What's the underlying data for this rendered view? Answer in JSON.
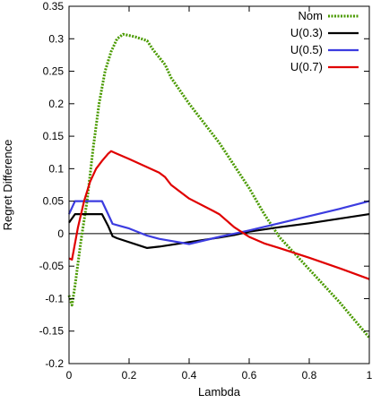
{
  "chart_data": {
    "type": "line",
    "xlabel": "Lambda",
    "ylabel": "Regret Difference",
    "xlim": [
      0,
      1
    ],
    "ylim": [
      -0.2,
      0.35
    ],
    "xticks": [
      0,
      0.2,
      0.4,
      0.6,
      0.8,
      1
    ],
    "xtick_labels": [
      "0",
      "0.2",
      "0.4",
      "0.6",
      "0.8",
      "1"
    ],
    "yticks": [
      -0.2,
      -0.15,
      -0.1,
      -0.05,
      0,
      0.05,
      0.1,
      0.15,
      0.2,
      0.25,
      0.3,
      0.35
    ],
    "ytick_labels": [
      "-0.2",
      "-0.15",
      "-0.1",
      "-0.05",
      "0",
      "0.05",
      "0.1",
      "0.15",
      "0.2",
      "0.25",
      "0.3",
      "0.35"
    ],
    "zero_line": true,
    "grid": false,
    "legend_position": "top-right",
    "series": [
      {
        "name": "Nom",
        "color": "#4a9a00",
        "dashed": true,
        "x": [
          0,
          0.01,
          0.02,
          0.04,
          0.06,
          0.08,
          0.1,
          0.12,
          0.14,
          0.16,
          0.18,
          0.2,
          0.22,
          0.26,
          0.28,
          0.32,
          0.34,
          0.4,
          0.5,
          0.6,
          0.65,
          0.7,
          0.8,
          0.9,
          1.0
        ],
        "y": [
          -0.095,
          -0.11,
          -0.08,
          -0.01,
          0.05,
          0.13,
          0.2,
          0.25,
          0.28,
          0.3,
          0.307,
          0.305,
          0.303,
          0.297,
          0.283,
          0.26,
          0.24,
          0.2,
          0.14,
          0.07,
          0.03,
          -0.005,
          -0.055,
          -0.105,
          -0.16
        ]
      },
      {
        "name": "U(0.3)",
        "color": "#000000",
        "dashed": false,
        "x": [
          0,
          0.02,
          0.04,
          0.06,
          0.08,
          0.1,
          0.11,
          0.13,
          0.145,
          0.16,
          0.26,
          0.3,
          0.4,
          0.5,
          0.55,
          0.6,
          0.7,
          0.8,
          0.9,
          1.0
        ],
        "y": [
          0.017,
          0.03,
          0.03,
          0.03,
          0.03,
          0.03,
          0.03,
          0.012,
          -0.004,
          -0.007,
          -0.022,
          -0.02,
          -0.013,
          -0.006,
          -0.002,
          0.003,
          0.01,
          0.016,
          0.023,
          0.03
        ]
      },
      {
        "name": "U(0.5)",
        "color": "#3c3ce0",
        "dashed": false,
        "x": [
          0,
          0.02,
          0.04,
          0.06,
          0.08,
          0.1,
          0.11,
          0.13,
          0.145,
          0.2,
          0.26,
          0.3,
          0.4,
          0.5,
          0.55,
          0.6,
          0.7,
          0.8,
          0.9,
          1.0
        ],
        "y": [
          0.03,
          0.05,
          0.05,
          0.05,
          0.05,
          0.05,
          0.05,
          0.03,
          0.015,
          0.008,
          -0.003,
          -0.008,
          -0.016,
          -0.005,
          0.0,
          0.005,
          0.016,
          0.027,
          0.038,
          0.05
        ]
      },
      {
        "name": "U(0.7)",
        "color": "#e00000",
        "dashed": false,
        "x": [
          0,
          0.01,
          0.03,
          0.05,
          0.07,
          0.09,
          0.11,
          0.13,
          0.14,
          0.2,
          0.3,
          0.32,
          0.34,
          0.4,
          0.48,
          0.5,
          0.55,
          0.6,
          0.65,
          0.7,
          0.8,
          0.9,
          1.0
        ],
        "y": [
          -0.038,
          -0.04,
          0.01,
          0.05,
          0.08,
          0.1,
          0.112,
          0.123,
          0.127,
          0.115,
          0.094,
          0.087,
          0.075,
          0.054,
          0.035,
          0.03,
          0.01,
          -0.005,
          -0.015,
          -0.022,
          -0.037,
          -0.053,
          -0.07
        ]
      }
    ]
  }
}
